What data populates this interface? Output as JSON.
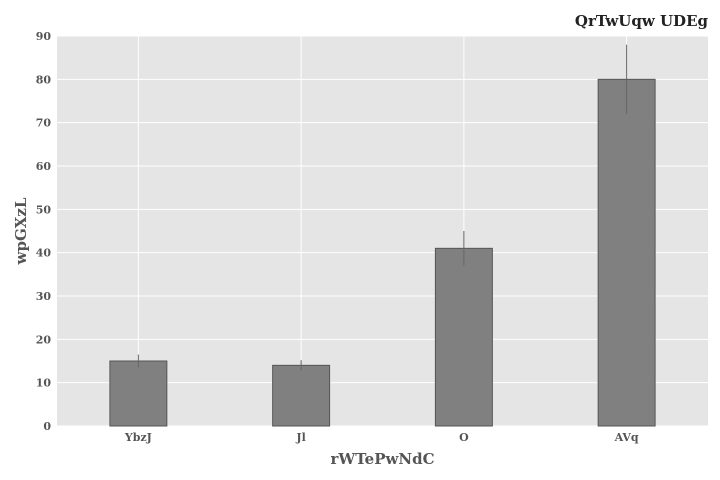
{
  "chart_data": {
    "type": "bar",
    "title": "QrTwUqw UDEg",
    "xlabel": "rWTePwNdC",
    "ylabel": "wpGXzL",
    "categories": [
      "YbzJ",
      "Jl",
      "O",
      "AVq"
    ],
    "values": [
      15,
      14,
      41,
      80
    ],
    "error": [
      1.5,
      1.2,
      4.0,
      8.0
    ],
    "ylim": [
      0,
      90
    ],
    "yticks": [
      0,
      10,
      20,
      30,
      40,
      50,
      60,
      70,
      80,
      90
    ],
    "grid": true,
    "legend": "none",
    "colors": {
      "bar_fill": "#808080",
      "bar_stroke": "#555555",
      "plot_background": "#e5e5e5",
      "grid": "#ffffff",
      "error_bar": "#666666"
    }
  }
}
